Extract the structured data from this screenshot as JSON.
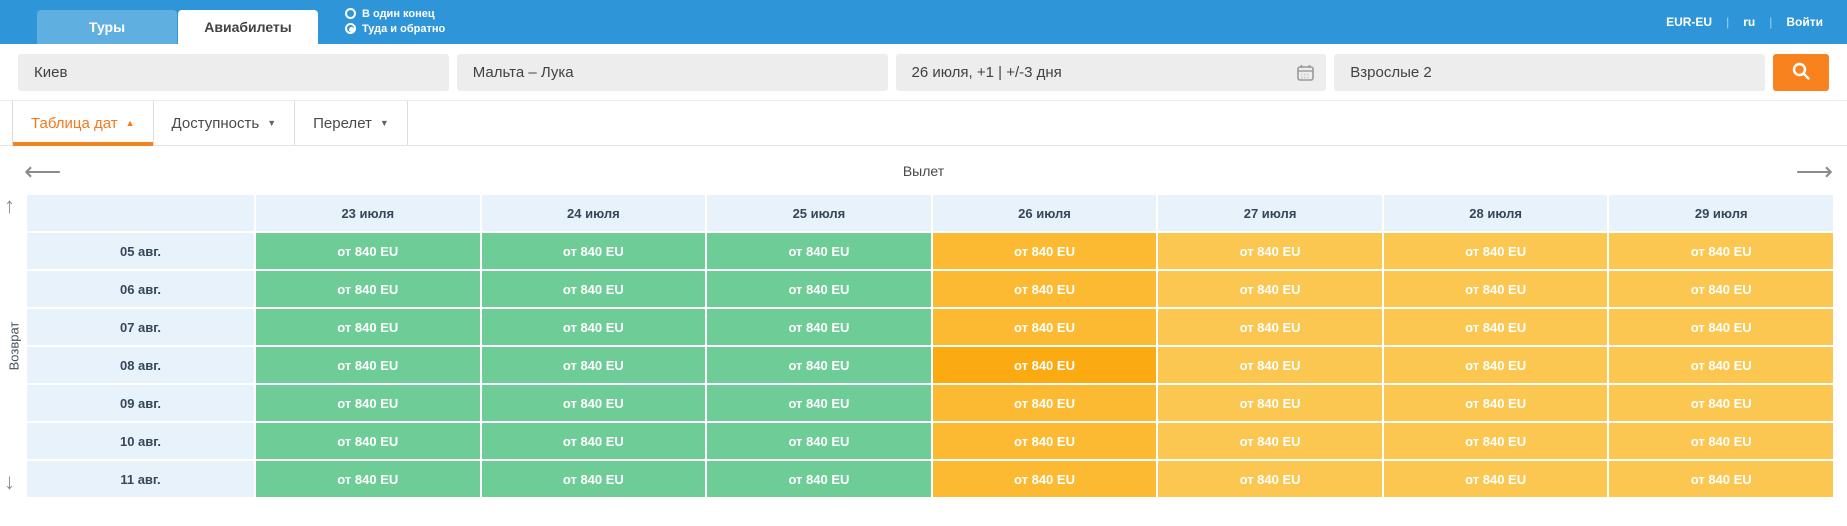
{
  "topbar": {
    "tabs": [
      {
        "label": "Туры",
        "active": false
      },
      {
        "label": "Авиабилеты",
        "active": true
      }
    ],
    "trip_type": [
      {
        "label": "В один конец",
        "selected": false
      },
      {
        "label": "Туда и обратно",
        "selected": true
      }
    ],
    "currency": "EUR-EU",
    "language": "ru",
    "login": "Войти",
    "bar_color": "#2e96d8"
  },
  "search": {
    "origin": "Киев",
    "destination": "Мальта – Лука",
    "dates": "26 июля, +1 | +/-3 дня",
    "passengers": "Взрослые 2",
    "icons": {
      "dates": "calendar-icon",
      "submit": "search-icon"
    },
    "button_color": "#f8821d"
  },
  "filter_tabs": [
    {
      "label": "Таблица дат",
      "caret": "▲",
      "active": true
    },
    {
      "label": "Доступность",
      "caret": "▼",
      "active": false
    },
    {
      "label": "Перелет",
      "caret": "▼",
      "active": false
    }
  ],
  "matrix": {
    "x_title": "Вылет",
    "y_title": "Возврат",
    "nav": {
      "left": "⟵",
      "right": "⟶",
      "up": "↑",
      "down": "↓"
    },
    "col_headers": [
      "23 июля",
      "24 июля",
      "25 июля",
      "26 июля",
      "27 июля",
      "28 июля",
      "29 июля"
    ],
    "row_headers": [
      "05 авг.",
      "06 авг.",
      "07 авг.",
      "08 авг.",
      "09 авг.",
      "10 авг.",
      "11 авг."
    ],
    "price": "от 840 EU",
    "green_cols": [
      0,
      1,
      2
    ],
    "selected_col": 3,
    "selected_row": 3,
    "colors": {
      "green": "#6ecd96",
      "orange": "#fcc751",
      "orange_selected_col": "#fbba31",
      "orange_selected_cell": "#fbaa12",
      "header_bg": "#e8f2fa",
      "accent": "#f5821f"
    }
  }
}
